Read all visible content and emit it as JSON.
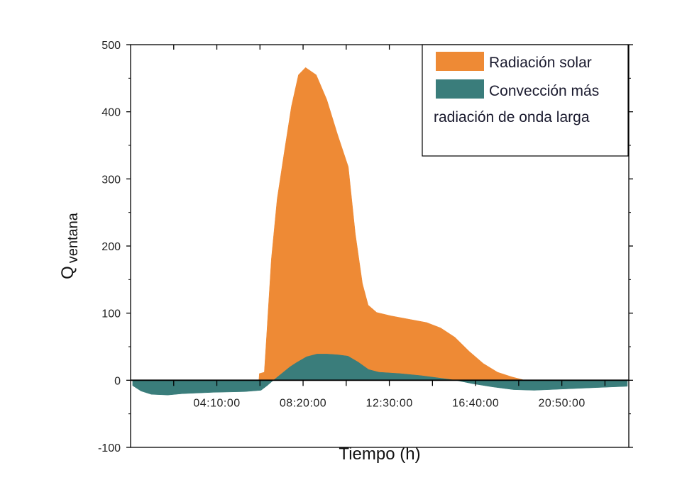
{
  "chart_data": {
    "type": "area",
    "title": "",
    "xlabel": "Tiempo (h)",
    "ylabel": {
      "main": "Q",
      "subscript": "ventana"
    },
    "xlim": [
      0,
      24
    ],
    "ylim": [
      -100,
      500
    ],
    "yticks": [
      -100,
      0,
      100,
      200,
      300,
      400,
      500
    ],
    "xticks": [
      {
        "h": 4.1667,
        "label": "04:10:00"
      },
      {
        "h": 8.3333,
        "label": "08:20:00"
      },
      {
        "h": 12.5,
        "label": "12:30:00"
      },
      {
        "h": 16.6667,
        "label": "16:40:00"
      },
      {
        "h": 20.8333,
        "label": "20:50:00"
      }
    ],
    "grid": false,
    "legend_placement": "top-right",
    "series": [
      {
        "name": "Radiación solar",
        "color": "#ee8a35",
        "points": [
          [
            6.2,
            0
          ],
          [
            6.22,
            10
          ],
          [
            6.46,
            12
          ],
          [
            6.56,
            60
          ],
          [
            6.8,
            180
          ],
          [
            7.08,
            270
          ],
          [
            7.42,
            339
          ],
          [
            7.77,
            408
          ],
          [
            8.11,
            455
          ],
          [
            8.45,
            466
          ],
          [
            8.97,
            455
          ],
          [
            9.48,
            418
          ],
          [
            10.0,
            366
          ],
          [
            10.52,
            318
          ],
          [
            10.86,
            218
          ],
          [
            11.2,
            144
          ],
          [
            11.48,
            112
          ],
          [
            11.89,
            101
          ],
          [
            12.58,
            96
          ],
          [
            13.44,
            91
          ],
          [
            14.3,
            86
          ],
          [
            14.98,
            78
          ],
          [
            15.67,
            64
          ],
          [
            16.36,
            43
          ],
          [
            17.04,
            25
          ],
          [
            17.73,
            12
          ],
          [
            18.42,
            5
          ],
          [
            18.93,
            1
          ],
          [
            19.0,
            0
          ]
        ]
      },
      {
        "name": "Convección más radiación de onda larga",
        "legend_lines": [
          "Convección más",
          "radiación de onda larga"
        ],
        "color": "#3a7d7b",
        "points": [
          [
            0.1,
            -8
          ],
          [
            0.5,
            -16
          ],
          [
            1.0,
            -21
          ],
          [
            1.8,
            -22
          ],
          [
            2.5,
            -20
          ],
          [
            4.0,
            -18
          ],
          [
            5.5,
            -17
          ],
          [
            6.3,
            -15
          ],
          [
            6.6,
            -8
          ],
          [
            6.9,
            0
          ],
          [
            7.3,
            10
          ],
          [
            7.7,
            20
          ],
          [
            8.0,
            26
          ],
          [
            8.5,
            35
          ],
          [
            9.0,
            39
          ],
          [
            9.5,
            39
          ],
          [
            10.0,
            38
          ],
          [
            10.5,
            36
          ],
          [
            11.0,
            27
          ],
          [
            11.5,
            16
          ],
          [
            12.0,
            12
          ],
          [
            13.0,
            10
          ],
          [
            14.0,
            7
          ],
          [
            15.0,
            3
          ],
          [
            15.7,
            0
          ],
          [
            16.5,
            -5
          ],
          [
            17.5,
            -10
          ],
          [
            18.5,
            -14
          ],
          [
            19.5,
            -15
          ],
          [
            21,
            -13
          ],
          [
            22.5,
            -11
          ],
          [
            24,
            -9
          ]
        ]
      }
    ]
  }
}
